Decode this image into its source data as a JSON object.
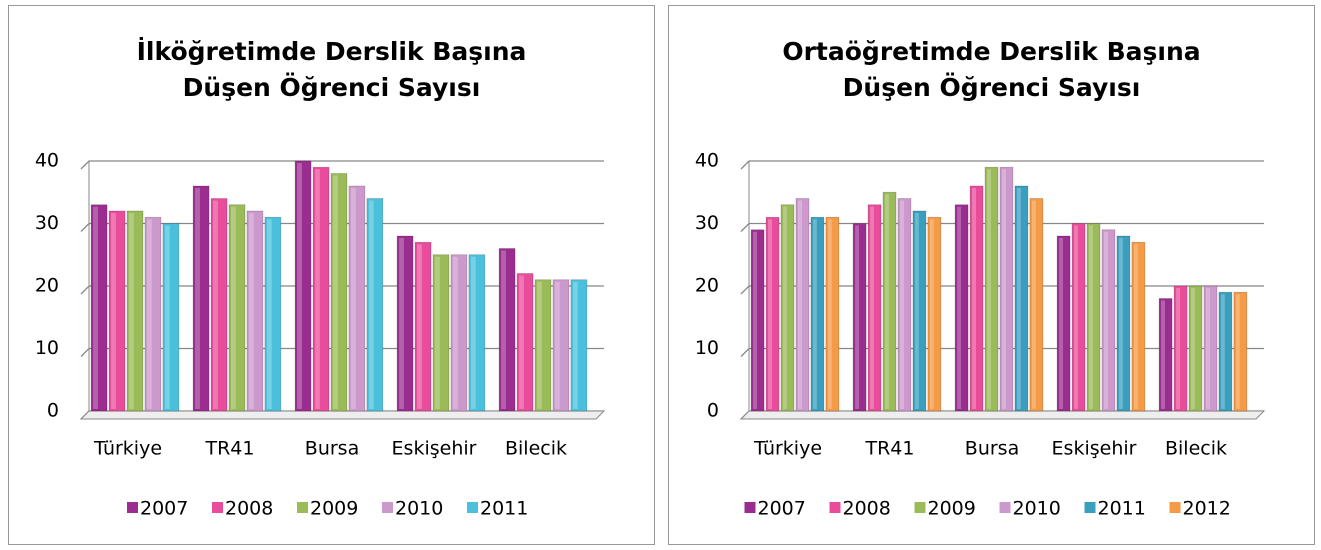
{
  "chart_data": [
    {
      "type": "bar",
      "title": "İlköğretimde Derslik Başına Düşen Öğrenci Sayısı",
      "categories": [
        "Türkiye",
        "TR41",
        "Bursa",
        "Eskişehir",
        "Bilecik"
      ],
      "series": [
        {
          "name": "2007",
          "color": "#9b2d91",
          "values": [
            33,
            36,
            40,
            28,
            26
          ]
        },
        {
          "name": "2008",
          "color": "#e84c9a",
          "values": [
            32,
            34,
            39,
            27,
            22
          ]
        },
        {
          "name": "2009",
          "color": "#9bbb59",
          "values": [
            32,
            33,
            38,
            25,
            21
          ]
        },
        {
          "name": "2010",
          "color": "#cc99cc",
          "values": [
            31,
            32,
            36,
            25,
            21
          ]
        },
        {
          "name": "2011",
          "color": "#4bc0dc",
          "values": [
            30,
            31,
            34,
            25,
            21
          ]
        }
      ],
      "ylim": [
        0,
        40
      ],
      "yticks": [
        0,
        10,
        20,
        30,
        40
      ],
      "grid": true,
      "legend": "bottom"
    },
    {
      "type": "bar",
      "title": "Ortaöğretimde Derslik Başına Düşen Öğrenci Sayısı",
      "categories": [
        "Türkiye",
        "TR41",
        "Bursa",
        "Eskişehir",
        "Bilecik"
      ],
      "series": [
        {
          "name": "2007",
          "color": "#9b2d91",
          "values": [
            29,
            30,
            33,
            28,
            18
          ]
        },
        {
          "name": "2008",
          "color": "#e84c9a",
          "values": [
            31,
            33,
            36,
            30,
            20
          ]
        },
        {
          "name": "2009",
          "color": "#9bbb59",
          "values": [
            33,
            35,
            39,
            30,
            20
          ]
        },
        {
          "name": "2010",
          "color": "#cc99cc",
          "values": [
            34,
            34,
            39,
            29,
            20
          ]
        },
        {
          "name": "2011",
          "color": "#3a9fbf",
          "values": [
            31,
            32,
            36,
            28,
            19
          ]
        },
        {
          "name": "2012",
          "color": "#f59a45",
          "values": [
            31,
            31,
            34,
            27,
            19
          ]
        }
      ],
      "ylim": [
        0,
        40
      ],
      "yticks": [
        0,
        10,
        20,
        30,
        40
      ],
      "grid": true,
      "legend": "bottom"
    }
  ]
}
